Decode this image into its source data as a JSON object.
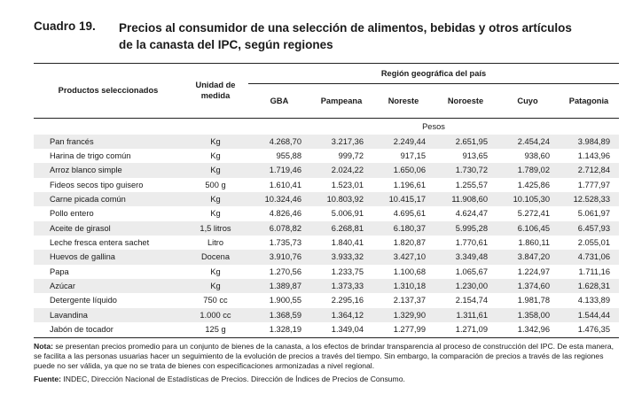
{
  "header": {
    "cuadro": "Cuadro 19.",
    "title_line1": "Precios al consumidor de una selección de alimentos, bebidas y otros artículos",
    "title_line2": "de la canasta del IPC, según regiones"
  },
  "table": {
    "col_products": "Productos seleccionados",
    "col_unit": "Unidad de medida",
    "region_header": "Región geográfica del país",
    "regions": [
      "GBA",
      "Pampeana",
      "Noreste",
      "Noroeste",
      "Cuyo",
      "Patagonia"
    ],
    "units_label": "Pesos",
    "rows": [
      {
        "product": "Pan francés",
        "unit": "Kg",
        "values": [
          "4.268,70",
          "3.217,36",
          "2.249,44",
          "2.651,95",
          "2.454,24",
          "3.984,89"
        ]
      },
      {
        "product": "Harina de trigo común",
        "unit": "Kg",
        "values": [
          "955,88",
          "999,72",
          "917,15",
          "913,65",
          "938,60",
          "1.143,96"
        ]
      },
      {
        "product": "Arroz blanco simple",
        "unit": "Kg",
        "values": [
          "1.719,46",
          "2.024,22",
          "1.650,06",
          "1.730,72",
          "1.789,02",
          "2.712,84"
        ]
      },
      {
        "product": "Fideos secos tipo guisero",
        "unit": "500 g",
        "values": [
          "1.610,41",
          "1.523,01",
          "1.196,61",
          "1.255,57",
          "1.425,86",
          "1.777,97"
        ]
      },
      {
        "product": "Carne picada común",
        "unit": "Kg",
        "values": [
          "10.324,46",
          "10.803,92",
          "10.415,17",
          "11.908,60",
          "10.105,30",
          "12.528,33"
        ]
      },
      {
        "product": "Pollo entero",
        "unit": "Kg",
        "values": [
          "4.826,46",
          "5.006,91",
          "4.695,61",
          "4.624,47",
          "5.272,41",
          "5.061,97"
        ]
      },
      {
        "product": "Aceite de girasol",
        "unit": "1,5 litros",
        "values": [
          "6.078,82",
          "6.268,81",
          "6.180,37",
          "5.995,28",
          "6.106,45",
          "6.457,93"
        ]
      },
      {
        "product": "Leche fresca entera sachet",
        "unit": "Litro",
        "values": [
          "1.735,73",
          "1.840,41",
          "1.820,87",
          "1.770,61",
          "1.860,11",
          "2.055,01"
        ]
      },
      {
        "product": "Huevos de gallina",
        "unit": "Docena",
        "values": [
          "3.910,76",
          "3.933,32",
          "3.427,10",
          "3.349,48",
          "3.847,20",
          "4.731,06"
        ]
      },
      {
        "product": "Papa",
        "unit": "Kg",
        "values": [
          "1.270,56",
          "1.233,75",
          "1.100,68",
          "1.065,67",
          "1.224,97",
          "1.711,16"
        ]
      },
      {
        "product": "Azúcar",
        "unit": "Kg",
        "values": [
          "1.389,87",
          "1.373,33",
          "1.310,18",
          "1.230,00",
          "1.374,60",
          "1.628,31"
        ]
      },
      {
        "product": "Detergente líquido",
        "unit": "750 cc",
        "values": [
          "1.900,55",
          "2.295,16",
          "2.137,37",
          "2.154,74",
          "1.981,78",
          "4.133,89"
        ]
      },
      {
        "product": "Lavandina",
        "unit": "1.000 cc",
        "values": [
          "1.368,59",
          "1.364,12",
          "1.329,90",
          "1.311,61",
          "1.358,00",
          "1.544,44"
        ]
      },
      {
        "product": "Jabón de tocador",
        "unit": "125 g",
        "values": [
          "1.328,19",
          "1.349,04",
          "1.277,99",
          "1.271,09",
          "1.342,96",
          "1.476,35"
        ]
      }
    ]
  },
  "notes": {
    "nota_label": "Nota:",
    "nota_text": " se presentan precios promedio para un conjunto de bienes de la canasta, a los efectos de brindar transparencia al proceso de construcción del IPC. De esta manera, se facilita a las personas usuarias hacer un seguimiento de la evolución de precios a través del tiempo. Sin embargo, la comparación de precios a través de las regiones puede no ser válida, ya que no se trata de bienes con especificaciones armonizadas a nivel regional.",
    "fuente_label": "Fuente:",
    "fuente_text": " INDEC, Dirección Nacional de Estadísticas de Precios. Dirección de Índices de Precios de Consumo."
  }
}
